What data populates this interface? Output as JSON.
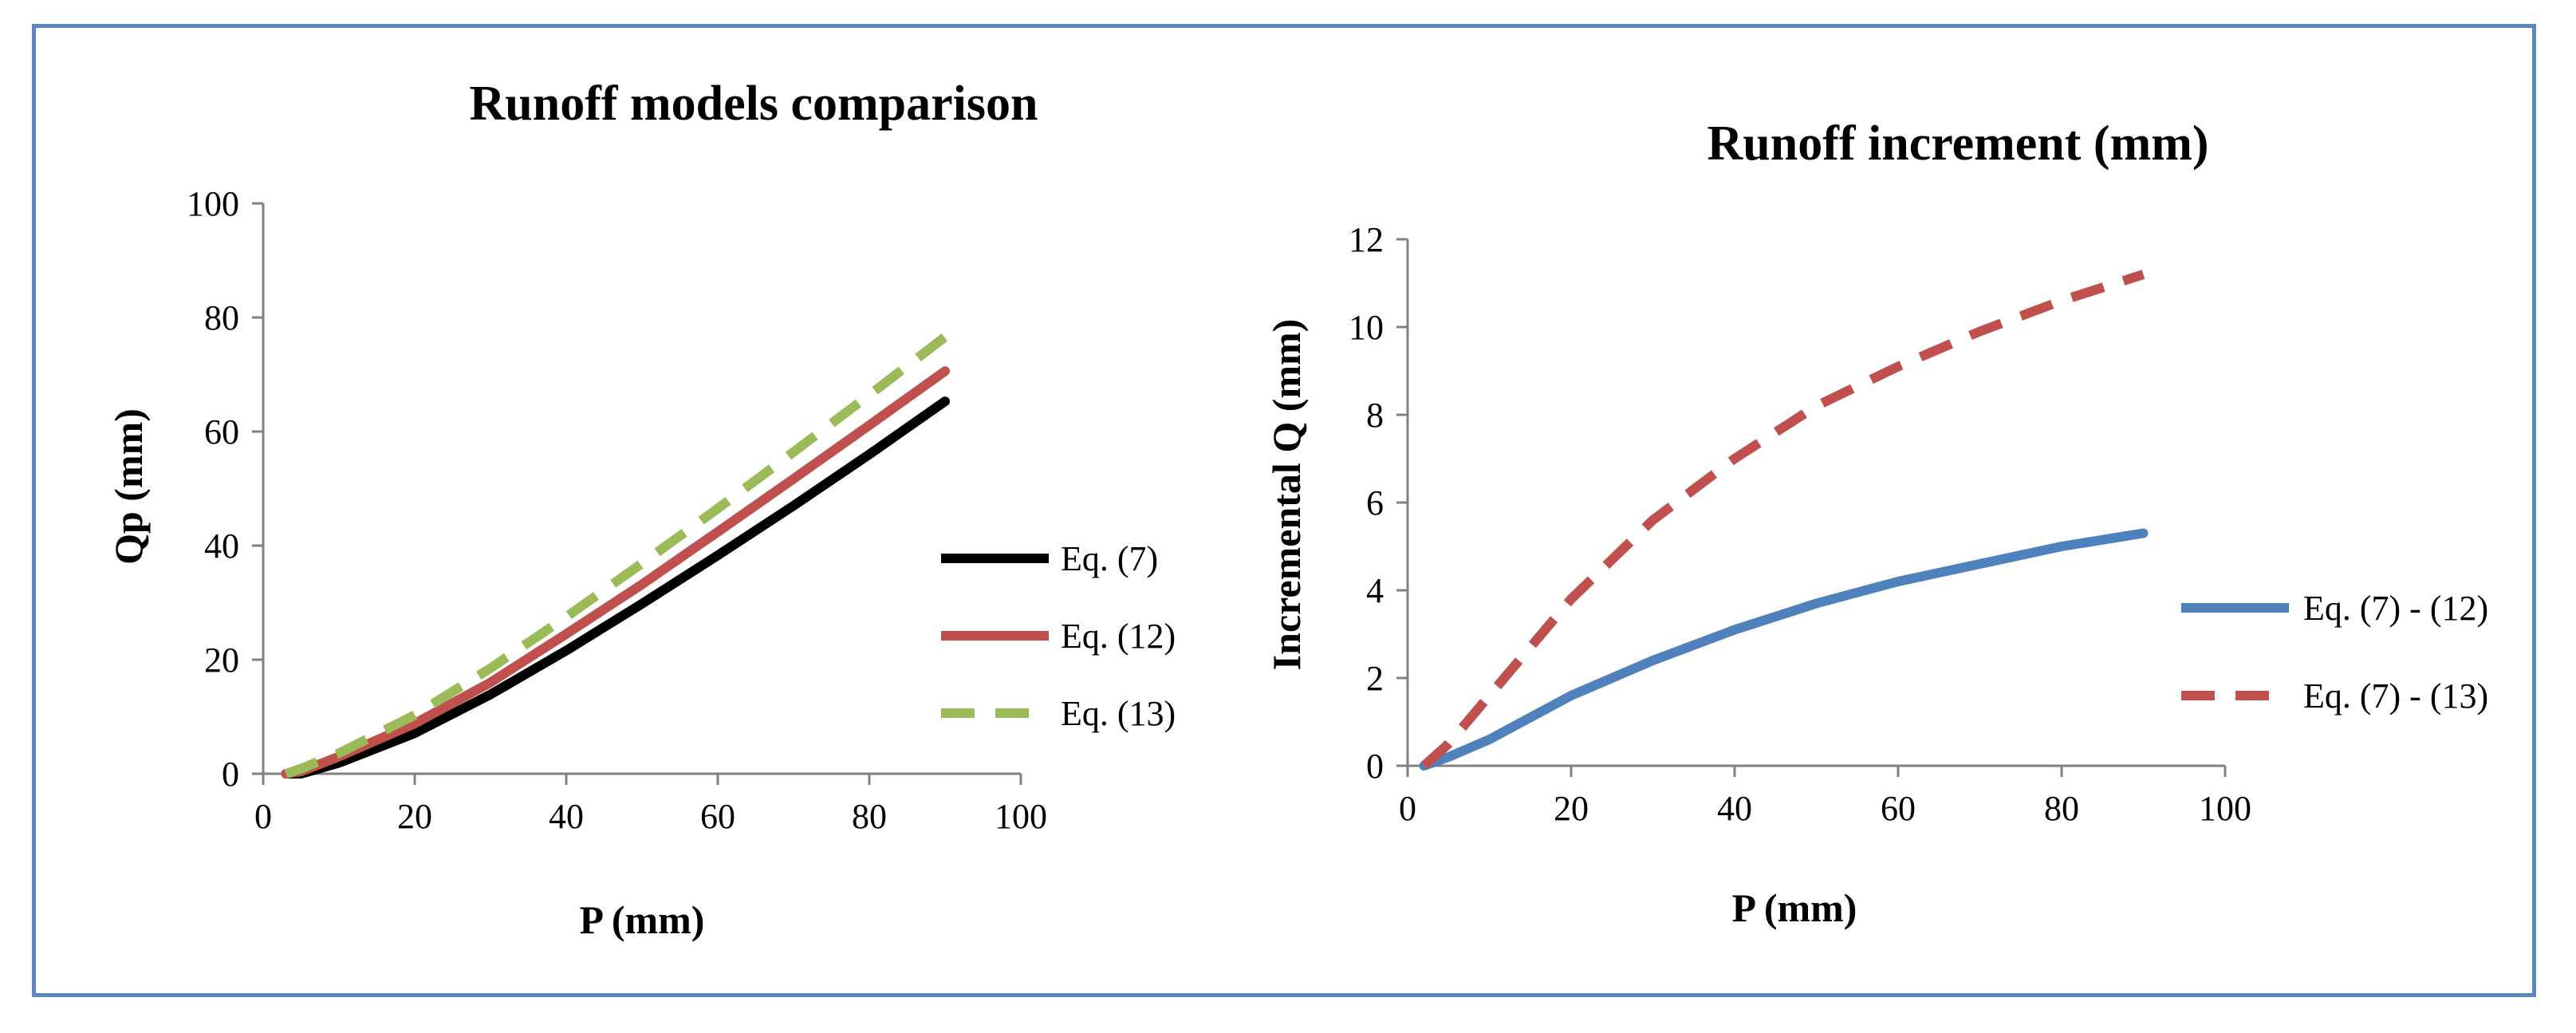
{
  "chart_data": [
    {
      "type": "line",
      "title": "Runoff models comparison",
      "xlabel": "P (mm)",
      "ylabel": "Qp (mm)",
      "xlim": [
        0,
        100
      ],
      "ylim": [
        0,
        100
      ],
      "xticks": [
        0,
        20,
        40,
        60,
        80,
        100
      ],
      "yticks": [
        0,
        20,
        40,
        60,
        80,
        100
      ],
      "x": [
        3,
        5,
        10,
        20,
        30,
        40,
        50,
        60,
        70,
        80,
        90
      ],
      "series": [
        {
          "name": "Eq. (7)",
          "color": "#000000",
          "dash": "solid",
          "values": [
            0,
            0,
            1.9,
            7.1,
            13.9,
            21.6,
            29.8,
            38.3,
            47.0,
            56.0,
            65.3
          ]
        },
        {
          "name": "Eq. (12)",
          "color": "#c0504d",
          "dash": "solid",
          "values": [
            0,
            0.4,
            3.0,
            8.8,
            16.0,
            24.5,
            33.2,
            42.4,
            51.7,
            61.1,
            70.6
          ]
        },
        {
          "name": "Eq. (13)",
          "color": "#9bbb59",
          "dash": "dashed",
          "values": [
            0,
            0.9,
            3.6,
            10.3,
            18.5,
            27.5,
            36.9,
            46.5,
            56.4,
            66.4,
            76.6
          ]
        }
      ],
      "legend": "right"
    },
    {
      "type": "line",
      "title": "Runoff increment (mm)",
      "xlabel": "P (mm)",
      "ylabel": "Incremental Q (mm)",
      "xlim": [
        0,
        100
      ],
      "ylim": [
        0,
        12
      ],
      "xticks": [
        0,
        20,
        40,
        60,
        80,
        100
      ],
      "yticks": [
        0,
        2,
        4,
        6,
        8,
        10,
        12
      ],
      "x": [
        2,
        5,
        10,
        20,
        30,
        40,
        50,
        60,
        70,
        80,
        90
      ],
      "series": [
        {
          "name": "Eq. (7) - (12)",
          "color": "#4f81bd",
          "dash": "solid",
          "values": [
            0,
            0.2,
            0.6,
            1.6,
            2.4,
            3.1,
            3.7,
            4.2,
            4.6,
            5.0,
            5.3
          ]
        },
        {
          "name": "Eq. (7) - (13)",
          "color": "#c0504d",
          "dash": "dashed",
          "values": [
            0,
            0.5,
            1.6,
            3.8,
            5.6,
            7.0,
            8.2,
            9.1,
            9.9,
            10.6,
            11.2
          ]
        }
      ],
      "legend": "right"
    }
  ]
}
